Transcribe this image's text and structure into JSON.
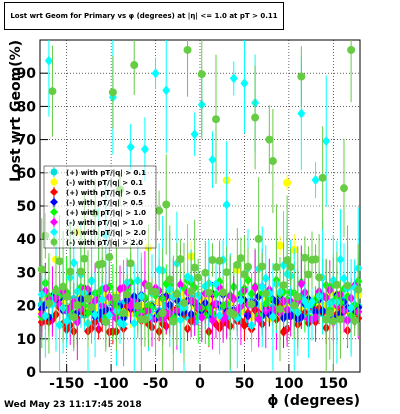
{
  "chart_data": {
    "type": "scatter",
    "title": "Lost wrt Geom for Primary vs φ (degrees) at |η| <= 1.0 at pT > 0.11",
    "xlabel": "ϕ (degrees)",
    "ylabel": "Lost wrt Geom(%)",
    "xlim": [
      -180,
      180
    ],
    "ylim": [
      0,
      100
    ],
    "x_ticks": [
      -150,
      -100,
      -50,
      0,
      50,
      100,
      150
    ],
    "y_ticks": [
      0,
      10,
      20,
      30,
      40,
      50,
      60,
      70,
      80,
      90
    ],
    "grid": true,
    "legend_position": "left-middle",
    "series": [
      {
        "name": "(+) with pT/|q| > 0.1",
        "color": "#00dede",
        "marker": "circle",
        "base": 19
      },
      {
        "name": "(-) with pT/|q| > 0.1",
        "color": "#ffff00",
        "marker": "circle",
        "base": 20
      },
      {
        "name": "(+) with pT/|q| > 0.5",
        "color": "#ff0000",
        "marker": "diamond",
        "base": 16
      },
      {
        "name": "(-) with pT/|q| > 0.5",
        "color": "#0000ff",
        "marker": "diamond",
        "base": 20
      },
      {
        "name": "(+) with pT/|q| > 1.0",
        "color": "#00ff00",
        "marker": "diamond",
        "base": 22
      },
      {
        "name": "(-) with pT/|q| > 1.0",
        "color": "#ff00ff",
        "marker": "diamond",
        "base": 21
      },
      {
        "name": "(+) with pT/|q| > 2.0",
        "color": "#00ffff",
        "marker": "diamond",
        "base": 24
      },
      {
        "name": "(-) with pT/|q| > 2.0",
        "color": "#66cc44",
        "marker": "circle",
        "base": 25
      }
    ]
  },
  "footer": {
    "date": "Wed May 23 11:17:45 2018"
  }
}
